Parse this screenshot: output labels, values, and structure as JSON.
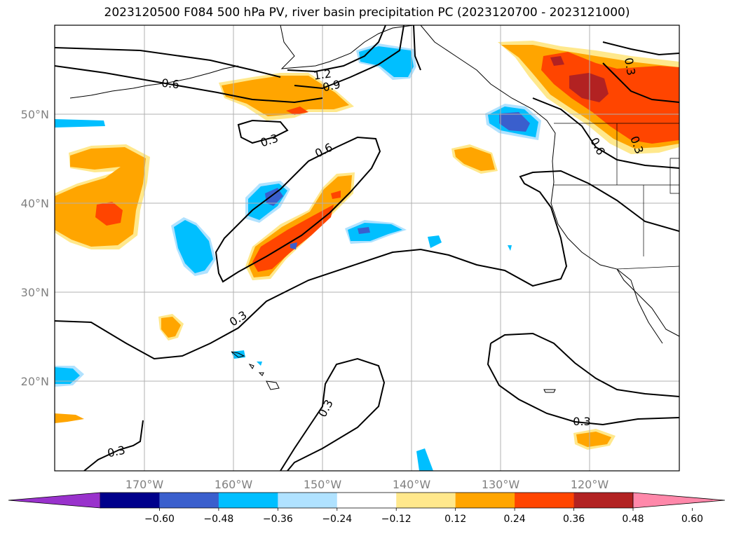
{
  "title": "2023120500 F084 500 hPa PV, river basin precipitation PC (2023120700 - 2023121000)",
  "lon_ticks": [
    "170°W",
    "160°W",
    "150°W",
    "140°W",
    "130°W",
    "120°W"
  ],
  "lat_ticks": [
    "50°N",
    "40°N",
    "30°N",
    "20°N"
  ],
  "contour_labels": [
    "0.6",
    "1.2",
    "0.9",
    "0.3",
    "0.6",
    "0.3",
    "0.3",
    "0.3",
    "0.3",
    "0.6",
    "0.3",
    "0.3"
  ],
  "colorbar": {
    "tick_labels": [
      "−0.60",
      "−0.48",
      "−0.36",
      "−0.24",
      "−0.12",
      "0.12",
      "0.24",
      "0.36",
      "0.48",
      "0.60"
    ],
    "colors": [
      "#9932cc",
      "#00008b",
      "#3a5fcd",
      "#00bfff",
      "#b0e2ff",
      "#ffffff",
      "#ffe88c",
      "#ffa500",
      "#ff4500",
      "#b22222",
      "#ff88aa"
    ]
  },
  "shading_colors": {
    "yellow": "#ffe88c",
    "orange": "#ffa500",
    "red": "#ff4500",
    "darkred": "#b22222",
    "lightblue": "#b0e2ff",
    "cyan": "#00bfff",
    "blue": "#3a5fcd"
  }
}
